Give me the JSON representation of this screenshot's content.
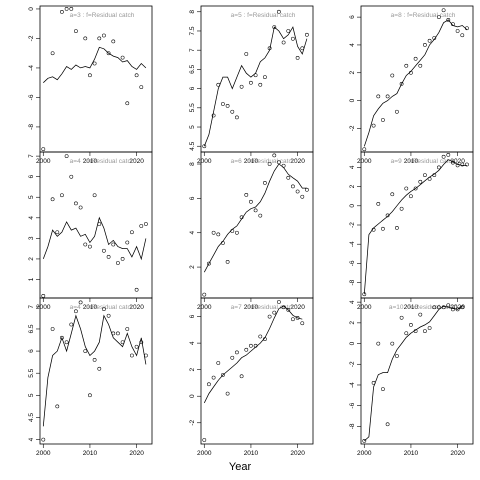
{
  "chart_data": {
    "type": "scatter",
    "xlabel": "Year",
    "panels": [
      {
        "title": "a=3  :  f=Residual catch",
        "x": [
          2000,
          2001,
          2002,
          2003,
          2004,
          2005,
          2006,
          2007,
          2008,
          2009,
          2010,
          2011,
          2012,
          2013,
          2014,
          2015,
          2016,
          2017,
          2018,
          2019,
          2020,
          2021,
          2022
        ],
        "y": [
          -9.5,
          null,
          -3,
          null,
          -0.2,
          0,
          0,
          -1.5,
          null,
          -2,
          -4.5,
          -3.7,
          -2,
          -1.8,
          -3,
          -2.2,
          null,
          -3.3,
          -6.4,
          null,
          -4.5,
          -5.3,
          null
        ],
        "fit": [
          -5.0,
          -4.7,
          -4.6,
          -4.8,
          -4.4,
          -3.9,
          -4.1,
          -3.8,
          -4.0,
          -3.9,
          -4.0,
          -3.4,
          -2.6,
          -2.7,
          -3.0,
          -3.2,
          -3.3,
          -3.6,
          -3.5,
          -3.9,
          -4.1,
          -3.7,
          -4.0
        ],
        "xticks": [
          2000,
          2010,
          2020
        ],
        "yticks": [
          -8,
          -6,
          -4,
          -2,
          0
        ],
        "ylim": [
          -9.7,
          0.2
        ]
      },
      {
        "title": "a=5  :  f=Residual catch",
        "x": [
          2000,
          2001,
          2002,
          2003,
          2004,
          2005,
          2006,
          2007,
          2008,
          2009,
          2010,
          2011,
          2012,
          2013,
          2014,
          2015,
          2016,
          2017,
          2018,
          2019,
          2020,
          2021,
          2022
        ],
        "y": [
          4.5,
          null,
          5.3,
          6.1,
          5.6,
          5.55,
          5.4,
          5.25,
          6.05,
          6.9,
          6.15,
          6.35,
          6.1,
          6.3,
          7.05,
          7.6,
          8.0,
          7.2,
          7.5,
          7.3,
          6.8,
          7.05,
          7.4
        ],
        "fit": [
          4.5,
          4.8,
          5.4,
          6.0,
          6.3,
          6.3,
          6.0,
          6.3,
          6.6,
          6.4,
          6.3,
          6.4,
          6.7,
          6.8,
          7.0,
          7.6,
          7.5,
          7.3,
          7.4,
          7.6,
          7.1,
          6.9,
          7.3
        ],
        "xticks": [
          2000,
          2010,
          2020
        ],
        "yticks": [
          4.5,
          5.0,
          5.5,
          6.0,
          6.5,
          7.0,
          7.5,
          8.0
        ],
        "ylim": [
          4.35,
          8.15
        ]
      },
      {
        "title": "a=8  :  f=Residual catch",
        "x": [
          2000,
          2001,
          2002,
          2003,
          2004,
          2005,
          2006,
          2007,
          2008,
          2009,
          2010,
          2011,
          2012,
          2013,
          2014,
          2015,
          2016,
          2017,
          2018,
          2019,
          2020,
          2021,
          2022
        ],
        "y": [
          -3.5,
          null,
          -1.8,
          0.3,
          -1.4,
          0.3,
          1.8,
          -0.8,
          1.2,
          2.5,
          2.0,
          3.0,
          2.5,
          4.0,
          4.3,
          4.5,
          6.0,
          6.5,
          5.8,
          5.5,
          5.0,
          4.7,
          5.2
        ],
        "fit": [
          -3.3,
          -2.3,
          -1.1,
          -0.6,
          -0.2,
          0.0,
          0.3,
          0.5,
          1.2,
          1.8,
          2.1,
          2.5,
          2.9,
          3.3,
          4.0,
          4.4,
          4.9,
          5.6,
          5.8,
          5.4,
          5.3,
          5.4,
          5.1
        ],
        "xticks": [
          2000,
          2010,
          2020
        ],
        "yticks": [
          -2,
          0,
          2,
          4,
          6
        ],
        "ylim": [
          -3.7,
          6.8
        ]
      },
      {
        "title": "a=4  :  f=Residual catch",
        "x": [
          2000,
          2001,
          2002,
          2003,
          2004,
          2005,
          2006,
          2007,
          2008,
          2009,
          2010,
          2011,
          2012,
          2013,
          2014,
          2015,
          2016,
          2017,
          2018,
          2019,
          2020,
          2021,
          2022
        ],
        "y": [
          0.2,
          null,
          4.9,
          3.3,
          5.1,
          7.0,
          6.0,
          4.7,
          4.5,
          2.7,
          2.6,
          5.1,
          3.7,
          2.4,
          2.1,
          2.7,
          1.8,
          2.0,
          2.8,
          3.3,
          0.5,
          3.6,
          3.7
        ],
        "fit": [
          2.0,
          2.6,
          3.4,
          3.1,
          3.3,
          3.8,
          3.4,
          3.5,
          3.1,
          3.2,
          2.8,
          3.1,
          4.0,
          3.5,
          2.7,
          2.9,
          2.6,
          2.5,
          2.5,
          2.1,
          2.6,
          2.0,
          3.0
        ],
        "xticks": [
          2000,
          2010,
          2020
        ],
        "yticks": [
          1,
          2,
          3,
          4,
          5,
          6,
          7
        ],
        "ylim": [
          0.1,
          7.2
        ]
      },
      {
        "title": "a=6  :  f=Residual catch",
        "x": [
          2000,
          2001,
          2002,
          2003,
          2004,
          2005,
          2006,
          2007,
          2008,
          2009,
          2010,
          2011,
          2012,
          2013,
          2014,
          2015,
          2016,
          2017,
          2018,
          2019,
          2020,
          2021,
          2022
        ],
        "y": [
          0.4,
          2.2,
          4.0,
          3.9,
          3.4,
          2.3,
          4.1,
          4.0,
          4.9,
          6.2,
          5.8,
          5.3,
          5.0,
          6.9,
          8.0,
          8.5,
          8.1,
          7.9,
          7.2,
          6.7,
          6.4,
          6.1,
          6.5
        ],
        "fit": [
          1.7,
          2.2,
          2.7,
          3.2,
          3.5,
          3.9,
          4.2,
          4.4,
          4.8,
          5.2,
          5.4,
          5.5,
          5.8,
          6.3,
          7.0,
          7.6,
          8.0,
          7.8,
          7.4,
          7.2,
          7.0,
          6.6,
          6.6
        ],
        "xticks": [
          2000,
          2010,
          2020
        ],
        "yticks": [
          2,
          4,
          6,
          8
        ],
        "ylim": [
          0.2,
          8.7
        ]
      },
      {
        "title": "a=9  :  f=Residual catch",
        "x": [
          2000,
          2001,
          2002,
          2003,
          2004,
          2005,
          2006,
          2007,
          2008,
          2009,
          2010,
          2011,
          2012,
          2013,
          2014,
          2015,
          2016,
          2017,
          2018,
          2019,
          2020,
          2021,
          2022
        ],
        "y": [
          -9.2,
          null,
          -2.5,
          0.2,
          -2.4,
          -1.0,
          1.2,
          -2.3,
          -0.3,
          1.8,
          1.0,
          1.8,
          2.5,
          3.2,
          2.8,
          3.2,
          4.0,
          5.1,
          5.3,
          4.5,
          4.2,
          4.3,
          4.3
        ],
        "fit": [
          -9.2,
          -3.0,
          -2.3,
          -1.9,
          -1.5,
          -1.1,
          -0.6,
          0.0,
          0.6,
          1.1,
          1.5,
          1.8,
          2.2,
          2.6,
          3.0,
          3.3,
          3.7,
          4.3,
          4.8,
          4.6,
          4.3,
          4.2,
          4.2
        ],
        "xticks": [
          2000,
          2010,
          2020
        ],
        "yticks": [
          -8,
          -6,
          -4,
          -2,
          0,
          2,
          4
        ],
        "ylim": [
          -9.6,
          5.6
        ]
      },
      {
        "title": "a=4  :  f=Residual catch",
        "x": [
          2000,
          2001,
          2002,
          2003,
          2004,
          2005,
          2006,
          2007,
          2008,
          2009,
          2010,
          2011,
          2012,
          2013,
          2014,
          2015,
          2016,
          2017,
          2018,
          2019,
          2020,
          2021,
          2022
        ],
        "y": [
          4.0,
          null,
          6.5,
          4.75,
          6.3,
          6.2,
          6.6,
          6.9,
          7.1,
          6.0,
          5.0,
          5.8,
          5.6,
          6.95,
          6.8,
          6.4,
          6.4,
          6.2,
          6.5,
          5.9,
          6.1,
          6.2,
          5.9
        ],
        "fit": [
          4.3,
          5.4,
          5.9,
          6.0,
          6.3,
          6.0,
          6.4,
          6.8,
          6.5,
          6.1,
          5.9,
          6.0,
          6.2,
          6.8,
          6.6,
          6.3,
          6.2,
          6.1,
          6.4,
          6.1,
          5.9,
          6.3,
          5.7
        ],
        "xticks": [
          2000,
          2010,
          2020
        ],
        "yticks": [
          4.0,
          4.5,
          5.0,
          5.5,
          6.0,
          6.5,
          7.0
        ],
        "ylim": [
          3.9,
          7.2
        ]
      },
      {
        "title": "a=7  :  f=Residual catch",
        "x": [
          2000,
          2001,
          2002,
          2003,
          2004,
          2005,
          2006,
          2007,
          2008,
          2009,
          2010,
          2011,
          2012,
          2013,
          2014,
          2015,
          2016,
          2017,
          2018,
          2019,
          2020,
          2021,
          2022
        ],
        "y": [
          -3.3,
          0.9,
          1.4,
          2.5,
          1.6,
          0.2,
          2.9,
          3.3,
          1.5,
          3.5,
          3.8,
          3.8,
          4.5,
          4.3,
          6.0,
          6.3,
          7.1,
          6.7,
          6.5,
          5.8,
          5.9,
          5.5,
          null
        ],
        "fit": [
          -0.5,
          0.2,
          0.7,
          1.2,
          1.6,
          1.9,
          2.2,
          2.5,
          2.9,
          3.1,
          3.4,
          3.7,
          4.0,
          4.4,
          5.1,
          5.9,
          6.6,
          6.8,
          6.5,
          6.1,
          5.9,
          5.8,
          null
        ],
        "xticks": [
          2000,
          2010,
          2020
        ],
        "yticks": [
          -2,
          0,
          2,
          4,
          6
        ],
        "ylim": [
          -3.6,
          7.4
        ]
      },
      {
        "title": "a=10  :  f=Residual catch",
        "x": [
          2000,
          2001,
          2002,
          2003,
          2004,
          2005,
          2006,
          2007,
          2008,
          2009,
          2010,
          2011,
          2012,
          2013,
          2014,
          2015,
          2016,
          2017,
          2018,
          2019,
          2020,
          2021,
          2022
        ],
        "y": [
          -9.4,
          null,
          -3.8,
          0.0,
          -4.4,
          -7.8,
          0.0,
          -1.2,
          2.5,
          1.0,
          1.8,
          1.2,
          2.8,
          1.2,
          1.5,
          3.5,
          3.5,
          3.5,
          3.7,
          3.3,
          3.3,
          3.5,
          null
        ],
        "fit": [
          -9.4,
          -9.0,
          -4.2,
          -3.0,
          -2.8,
          -2.8,
          -1.5,
          -0.6,
          0.0,
          0.6,
          1.0,
          1.3,
          1.6,
          1.8,
          2.1,
          2.7,
          3.3,
          3.6,
          3.5,
          3.4,
          3.3,
          3.6,
          null
        ],
        "xticks": [
          2000,
          2010,
          2020
        ],
        "yticks": [
          -8,
          -6,
          -4,
          -2,
          0,
          2,
          4
        ],
        "ylim": [
          -9.7,
          4.4
        ]
      }
    ]
  }
}
